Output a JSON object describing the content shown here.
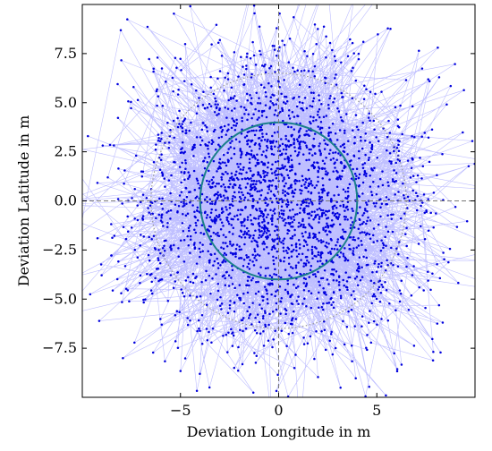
{
  "chart_data": {
    "type": "scatter",
    "title": "",
    "xlabel": "Deviation Longitude in m",
    "ylabel": "Deviation Latitude in m",
    "xlim": [
      -10,
      10
    ],
    "ylim": [
      -10,
      10
    ],
    "x_ticks": [
      -5,
      0,
      5
    ],
    "x_tick_labels": [
      "−5",
      "0",
      "5"
    ],
    "y_ticks": [
      7.5,
      5.0,
      2.5,
      0.0,
      -2.5,
      -5.0,
      -7.5
    ],
    "y_tick_labels": [
      "7.5",
      "5.0",
      "2.5",
      "0.0",
      "−2.5",
      "−5.0",
      "−7.5"
    ],
    "grid": false,
    "reference_lines": [
      {
        "orientation": "vertical",
        "value": 0,
        "style": "dashed",
        "color": "#777777"
      },
      {
        "orientation": "horizontal",
        "value": 0,
        "style": "dashed",
        "color": "#777777"
      }
    ],
    "circles": [
      {
        "center": [
          0,
          0
        ],
        "radius": 4.0,
        "style": "solid",
        "color": "#1a7f8a"
      },
      {
        "center": [
          0,
          0
        ],
        "radius": 6.5,
        "style": "dotted",
        "color": "#999999"
      }
    ],
    "series": [
      {
        "points_count": 2600,
        "distribution": "approximately bivariate normal, centered at (0, 0), standard deviation about 3.6 m per axis",
        "marker_color": "#0000dd",
        "line_color": "#6f6fff",
        "points_connected": true,
        "points": []
      }
    ]
  }
}
